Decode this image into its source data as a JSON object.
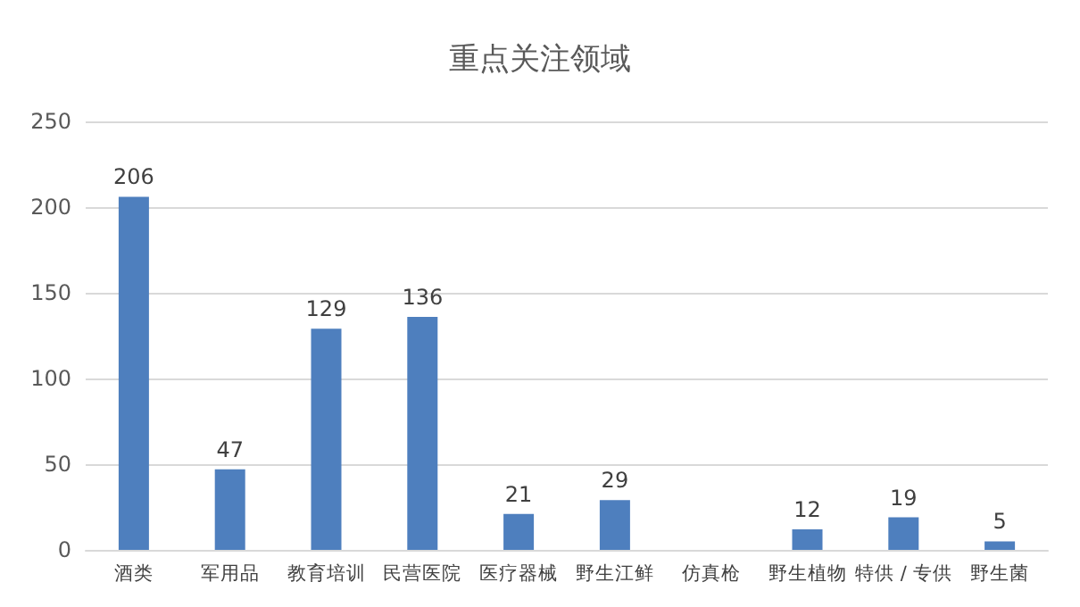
{
  "chart_data": {
    "type": "bar",
    "title": "重点关注领域",
    "categories": [
      "酒类",
      "军用品",
      "教育培训",
      "民营医院",
      "医疗器械",
      "野生江鲜",
      "仿真枪",
      "野生植物",
      "特供 / 专供",
      "野生菌"
    ],
    "values": [
      206,
      47,
      129,
      136,
      21,
      29,
      null,
      12,
      19,
      5
    ],
    "color": "#4e7fbe",
    "ylim": [
      0,
      250
    ],
    "yticks": [
      0,
      50,
      100,
      150,
      200,
      250
    ],
    "grid": "y",
    "data_labels": true
  }
}
